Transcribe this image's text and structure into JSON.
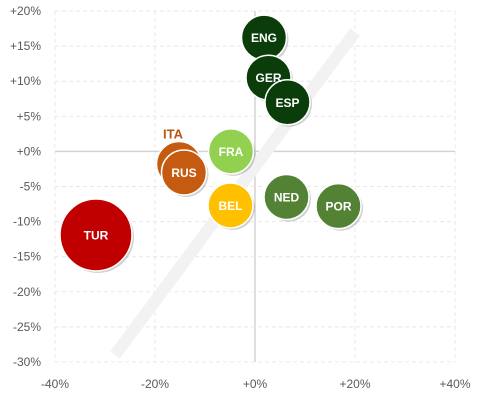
{
  "chart_data": {
    "type": "scatter",
    "title": "",
    "xlabel": "",
    "ylabel": "",
    "xlim": [
      -40,
      40
    ],
    "ylim": [
      -30,
      20
    ],
    "x_ticks": [
      -40,
      -20,
      0,
      20,
      40
    ],
    "y_ticks": [
      20,
      15,
      10,
      5,
      0,
      -5,
      -10,
      -15,
      -20,
      -25,
      -30
    ],
    "x_tick_labels": [
      "-40%",
      "-20%",
      "+0%",
      "+20%",
      "+40%"
    ],
    "y_tick_labels": [
      "+20%",
      "+15%",
      "+10%",
      "+5%",
      "+0%",
      "-5%",
      "-10%",
      "-15%",
      "-20%",
      "-25%",
      "-30%"
    ],
    "grid": true,
    "legend": "none",
    "reference_line": {
      "type": "diagonal",
      "from": [
        -28,
        -29
      ],
      "to": [
        20,
        17
      ],
      "color": "#f2f2f2"
    },
    "points": [
      {
        "label": "ENG",
        "x": 1.8,
        "y": 16.2,
        "size": 1.0,
        "color": "#0b3d0b"
      },
      {
        "label": "GER",
        "x": 2.7,
        "y": 10.5,
        "size": 1.0,
        "color": "#0b3d0b"
      },
      {
        "label": "ESP",
        "x": 6.5,
        "y": 7.0,
        "size": 1.0,
        "color": "#0b3d0b"
      },
      {
        "label": "FRA",
        "x": -4.8,
        "y": 0.0,
        "size": 1.0,
        "color": "#92d050"
      },
      {
        "label": "ITA",
        "x": -15.2,
        "y": -1.8,
        "size": 1.0,
        "color": "#c55a11",
        "label_position": "outside"
      },
      {
        "label": "RUS",
        "x": -14.2,
        "y": -3.0,
        "size": 1.0,
        "color": "#c55a11"
      },
      {
        "label": "NED",
        "x": 6.3,
        "y": -6.5,
        "size": 1.0,
        "color": "#548235"
      },
      {
        "label": "POR",
        "x": 16.7,
        "y": -7.8,
        "size": 1.0,
        "color": "#548235"
      },
      {
        "label": "BEL",
        "x": -4.9,
        "y": -7.7,
        "size": 1.0,
        "color": "#ffc000"
      },
      {
        "label": "TUR",
        "x": -31.8,
        "y": -11.9,
        "size": 1.6,
        "color": "#c00000"
      }
    ]
  }
}
